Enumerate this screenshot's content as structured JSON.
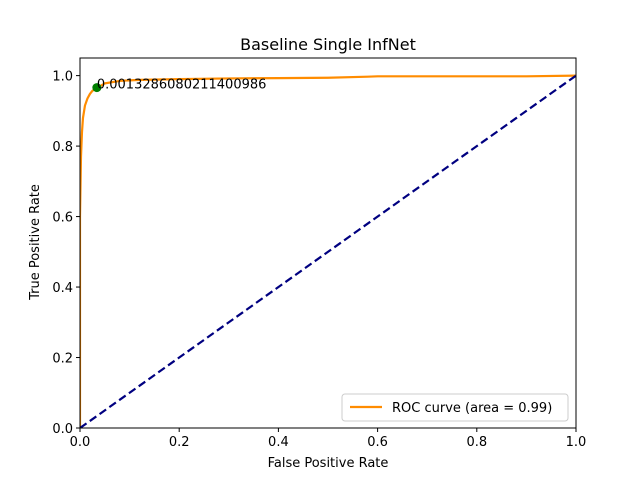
{
  "chart_data": {
    "type": "line",
    "title": "Baseline Single InfNet",
    "xlabel": "False Positive Rate",
    "ylabel": "True Positive Rate",
    "xlim": [
      0.0,
      1.0
    ],
    "ylim": [
      0.0,
      1.05
    ],
    "xticks": [
      "0.0",
      "0.2",
      "0.4",
      "0.6",
      "0.8",
      "1.0"
    ],
    "xtick_values": [
      0.0,
      0.2,
      0.4,
      0.6,
      0.8,
      1.0
    ],
    "yticks": [
      "0.0",
      "0.2",
      "0.4",
      "0.6",
      "0.8",
      "1.0"
    ],
    "ytick_values": [
      0.0,
      0.2,
      0.4,
      0.6,
      0.8,
      1.0
    ],
    "grid": false,
    "legend_placement": "lower-right",
    "series": [
      {
        "name": "ROC curve (area = 0.99)",
        "color": "#ff8c00",
        "style": "solid",
        "x": [
          0.0,
          0.0,
          0.002,
          0.004,
          0.006,
          0.01,
          0.015,
          0.02,
          0.025,
          0.035,
          0.05,
          0.08,
          0.12,
          0.2,
          0.3,
          0.4,
          0.5,
          0.58,
          0.6,
          0.7,
          0.8,
          0.9,
          1.0
        ],
        "y": [
          0.0,
          0.6,
          0.77,
          0.84,
          0.88,
          0.915,
          0.935,
          0.948,
          0.957,
          0.965,
          0.978,
          0.985,
          0.988,
          0.99,
          0.992,
          0.993,
          0.994,
          0.997,
          0.998,
          0.998,
          0.998,
          0.998,
          1.0
        ]
      },
      {
        "name": "",
        "color": "#000080",
        "style": "dashed",
        "x": [
          0.0,
          1.0
        ],
        "y": [
          0.0,
          1.0
        ]
      }
    ],
    "marker": {
      "x": 0.034,
      "y": 0.966,
      "color": "#008000"
    },
    "annotation": {
      "text": "0.0013286080211400986",
      "x": 0.034,
      "y": 0.966
    }
  }
}
